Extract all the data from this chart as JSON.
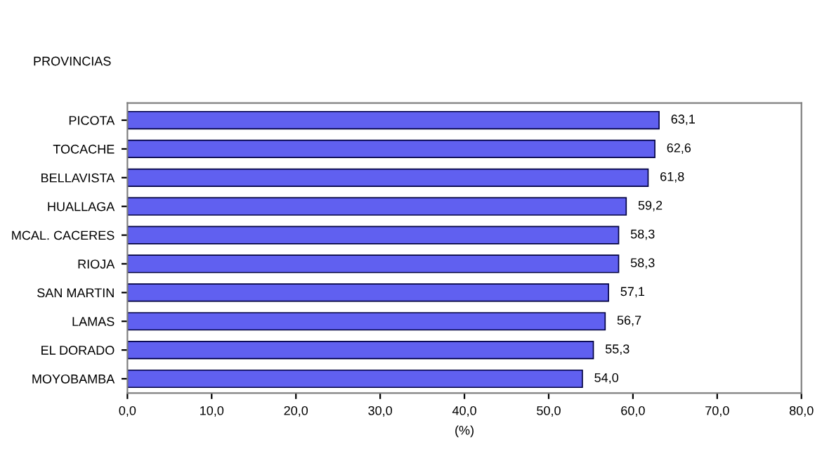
{
  "chart_data": {
    "type": "bar",
    "orientation": "horizontal",
    "ylabel": "PROVINCIAS",
    "xlabel": "(%)",
    "categories": [
      "PICOTA",
      "TOCACHE",
      "BELLAVISTA",
      "HUALLAGA",
      "MCAL. CACERES",
      "RIOJA",
      "SAN MARTIN",
      "LAMAS",
      "EL DORADO",
      "MOYOBAMBA"
    ],
    "values": [
      63.1,
      62.6,
      61.8,
      59.2,
      58.3,
      58.3,
      57.1,
      56.7,
      55.3,
      54.0
    ],
    "value_labels": [
      "63,1",
      "62,6",
      "61,8",
      "59,2",
      "58,3",
      "58,3",
      "57,1",
      "56,7",
      "55,3",
      "54,0"
    ],
    "color": "#6060f0",
    "xlim": [
      0,
      80
    ],
    "xticks": [
      {
        "value": 0,
        "label": "0,0"
      },
      {
        "value": 10,
        "label": "10,0"
      },
      {
        "value": 20,
        "label": "20,0"
      },
      {
        "value": 30,
        "label": "30,0"
      },
      {
        "value": 40,
        "label": "40,0"
      },
      {
        "value": 50,
        "label": "50,0"
      },
      {
        "value": 60,
        "label": "60,0"
      },
      {
        "value": 70,
        "label": "70,0"
      },
      {
        "value": 80,
        "label": "80,0"
      }
    ],
    "grid": false,
    "legend": false
  }
}
